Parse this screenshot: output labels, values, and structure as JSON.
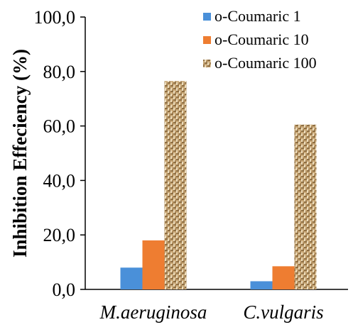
{
  "chart_data": {
    "type": "bar",
    "title": "",
    "xlabel": "",
    "ylabel": "Inhibition Effeciency (%)",
    "ylim": [
      0,
      100
    ],
    "yticks": [
      "0,0",
      "20,0",
      "40,0",
      "60,0",
      "80,0",
      "100,0"
    ],
    "ytick_values": [
      0,
      20,
      40,
      60,
      80,
      100
    ],
    "categories": [
      "M.aeruginosa",
      "C.vulgaris"
    ],
    "series": [
      {
        "name": "o-Coumaric 1",
        "values": [
          8.0,
          3.0
        ],
        "color": "#4a90d9",
        "pattern": "solid"
      },
      {
        "name": "o-Coumaric 10",
        "values": [
          18.0,
          8.5
        ],
        "color": "#ee7d31",
        "pattern": "solid"
      },
      {
        "name": "o-Coumaric 100",
        "values": [
          76.5,
          60.5
        ],
        "color": "#c9a877",
        "pattern": "burlap"
      }
    ],
    "legend_position": "top-right",
    "grid": false
  }
}
